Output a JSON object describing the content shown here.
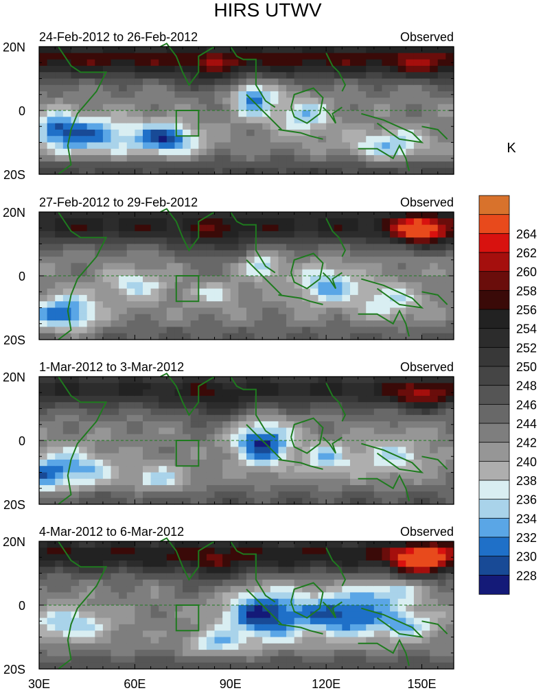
{
  "title": "HIRS UTWV",
  "colorbar": {
    "unit": "K",
    "levels": [
      228,
      230,
      232,
      234,
      236,
      238,
      240,
      242,
      244,
      246,
      248,
      250,
      252,
      254,
      256,
      258,
      260,
      262,
      264
    ],
    "colors": [
      "#141a78",
      "#184a96",
      "#1f70c8",
      "#5aa6e6",
      "#a9d3ea",
      "#d9eef2",
      "#aeaeae",
      "#969696",
      "#7e7e7e",
      "#686868",
      "#555555",
      "#454545",
      "#383838",
      "#2c2c2c",
      "#222222",
      "#3a0a08",
      "#6a0d0b",
      "#a50f0d",
      "#d8120f",
      "#e84a1c",
      "#d8722c"
    ]
  },
  "chart_data": [
    {
      "type": "heatmap",
      "subtitle_left": "24-Feb-2012 to 26-Feb-2012",
      "subtitle_right": "Observed",
      "x_ticks": [
        "30E",
        "60E",
        "90E",
        "120E",
        "150E"
      ],
      "y_ticks": [
        "20N",
        "0",
        "20S"
      ],
      "xlim": [
        30,
        160
      ],
      "ylim": [
        -20,
        20
      ],
      "unit": "K"
    },
    {
      "type": "heatmap",
      "subtitle_left": "27-Feb-2012 to 29-Feb-2012",
      "subtitle_right": "Observed",
      "x_ticks": [
        "30E",
        "60E",
        "90E",
        "120E",
        "150E"
      ],
      "y_ticks": [
        "20N",
        "0",
        "20S"
      ],
      "xlim": [
        30,
        160
      ],
      "ylim": [
        -20,
        20
      ],
      "unit": "K"
    },
    {
      "type": "heatmap",
      "subtitle_left": "1-Mar-2012 to 3-Mar-2012",
      "subtitle_right": "Observed",
      "x_ticks": [
        "30E",
        "60E",
        "90E",
        "120E",
        "150E"
      ],
      "y_ticks": [
        "20N",
        "0",
        "20S"
      ],
      "xlim": [
        30,
        160
      ],
      "ylim": [
        -20,
        20
      ],
      "unit": "K"
    },
    {
      "type": "heatmap",
      "subtitle_left": "4-Mar-2012 to 6-Mar-2012",
      "subtitle_right": "Observed",
      "x_ticks": [
        "30E",
        "60E",
        "90E",
        "120E",
        "150E"
      ],
      "y_ticks": [
        "20N",
        "0",
        "20S"
      ],
      "xlim": [
        30,
        160
      ],
      "ylim": [
        -20,
        20
      ],
      "unit": "K"
    }
  ]
}
